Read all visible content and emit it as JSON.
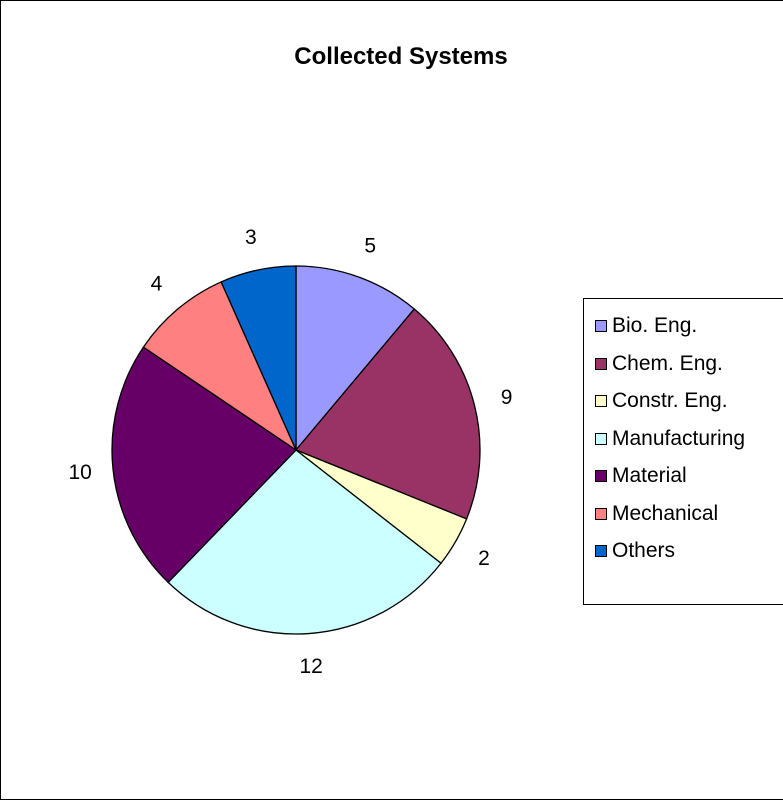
{
  "chart_data": {
    "type": "pie",
    "title": "Collected Systems",
    "categories": [
      "Bio. Eng.",
      "Chem. Eng.",
      "Constr. Eng.",
      "Manufacturing",
      "Material",
      "Mechanical",
      "Others"
    ],
    "values": [
      5,
      9,
      2,
      12,
      10,
      4,
      3
    ],
    "colors": [
      "#9999ff",
      "#993366",
      "#ffffcc",
      "#ccffff",
      "#660066",
      "#ff8080",
      "#0066cc"
    ],
    "data_labels": [
      "5",
      "9",
      "2",
      "12",
      "10",
      "4",
      "3"
    ],
    "start_angle": "12 o'clock",
    "direction": "clockwise",
    "legend_position": "right"
  }
}
